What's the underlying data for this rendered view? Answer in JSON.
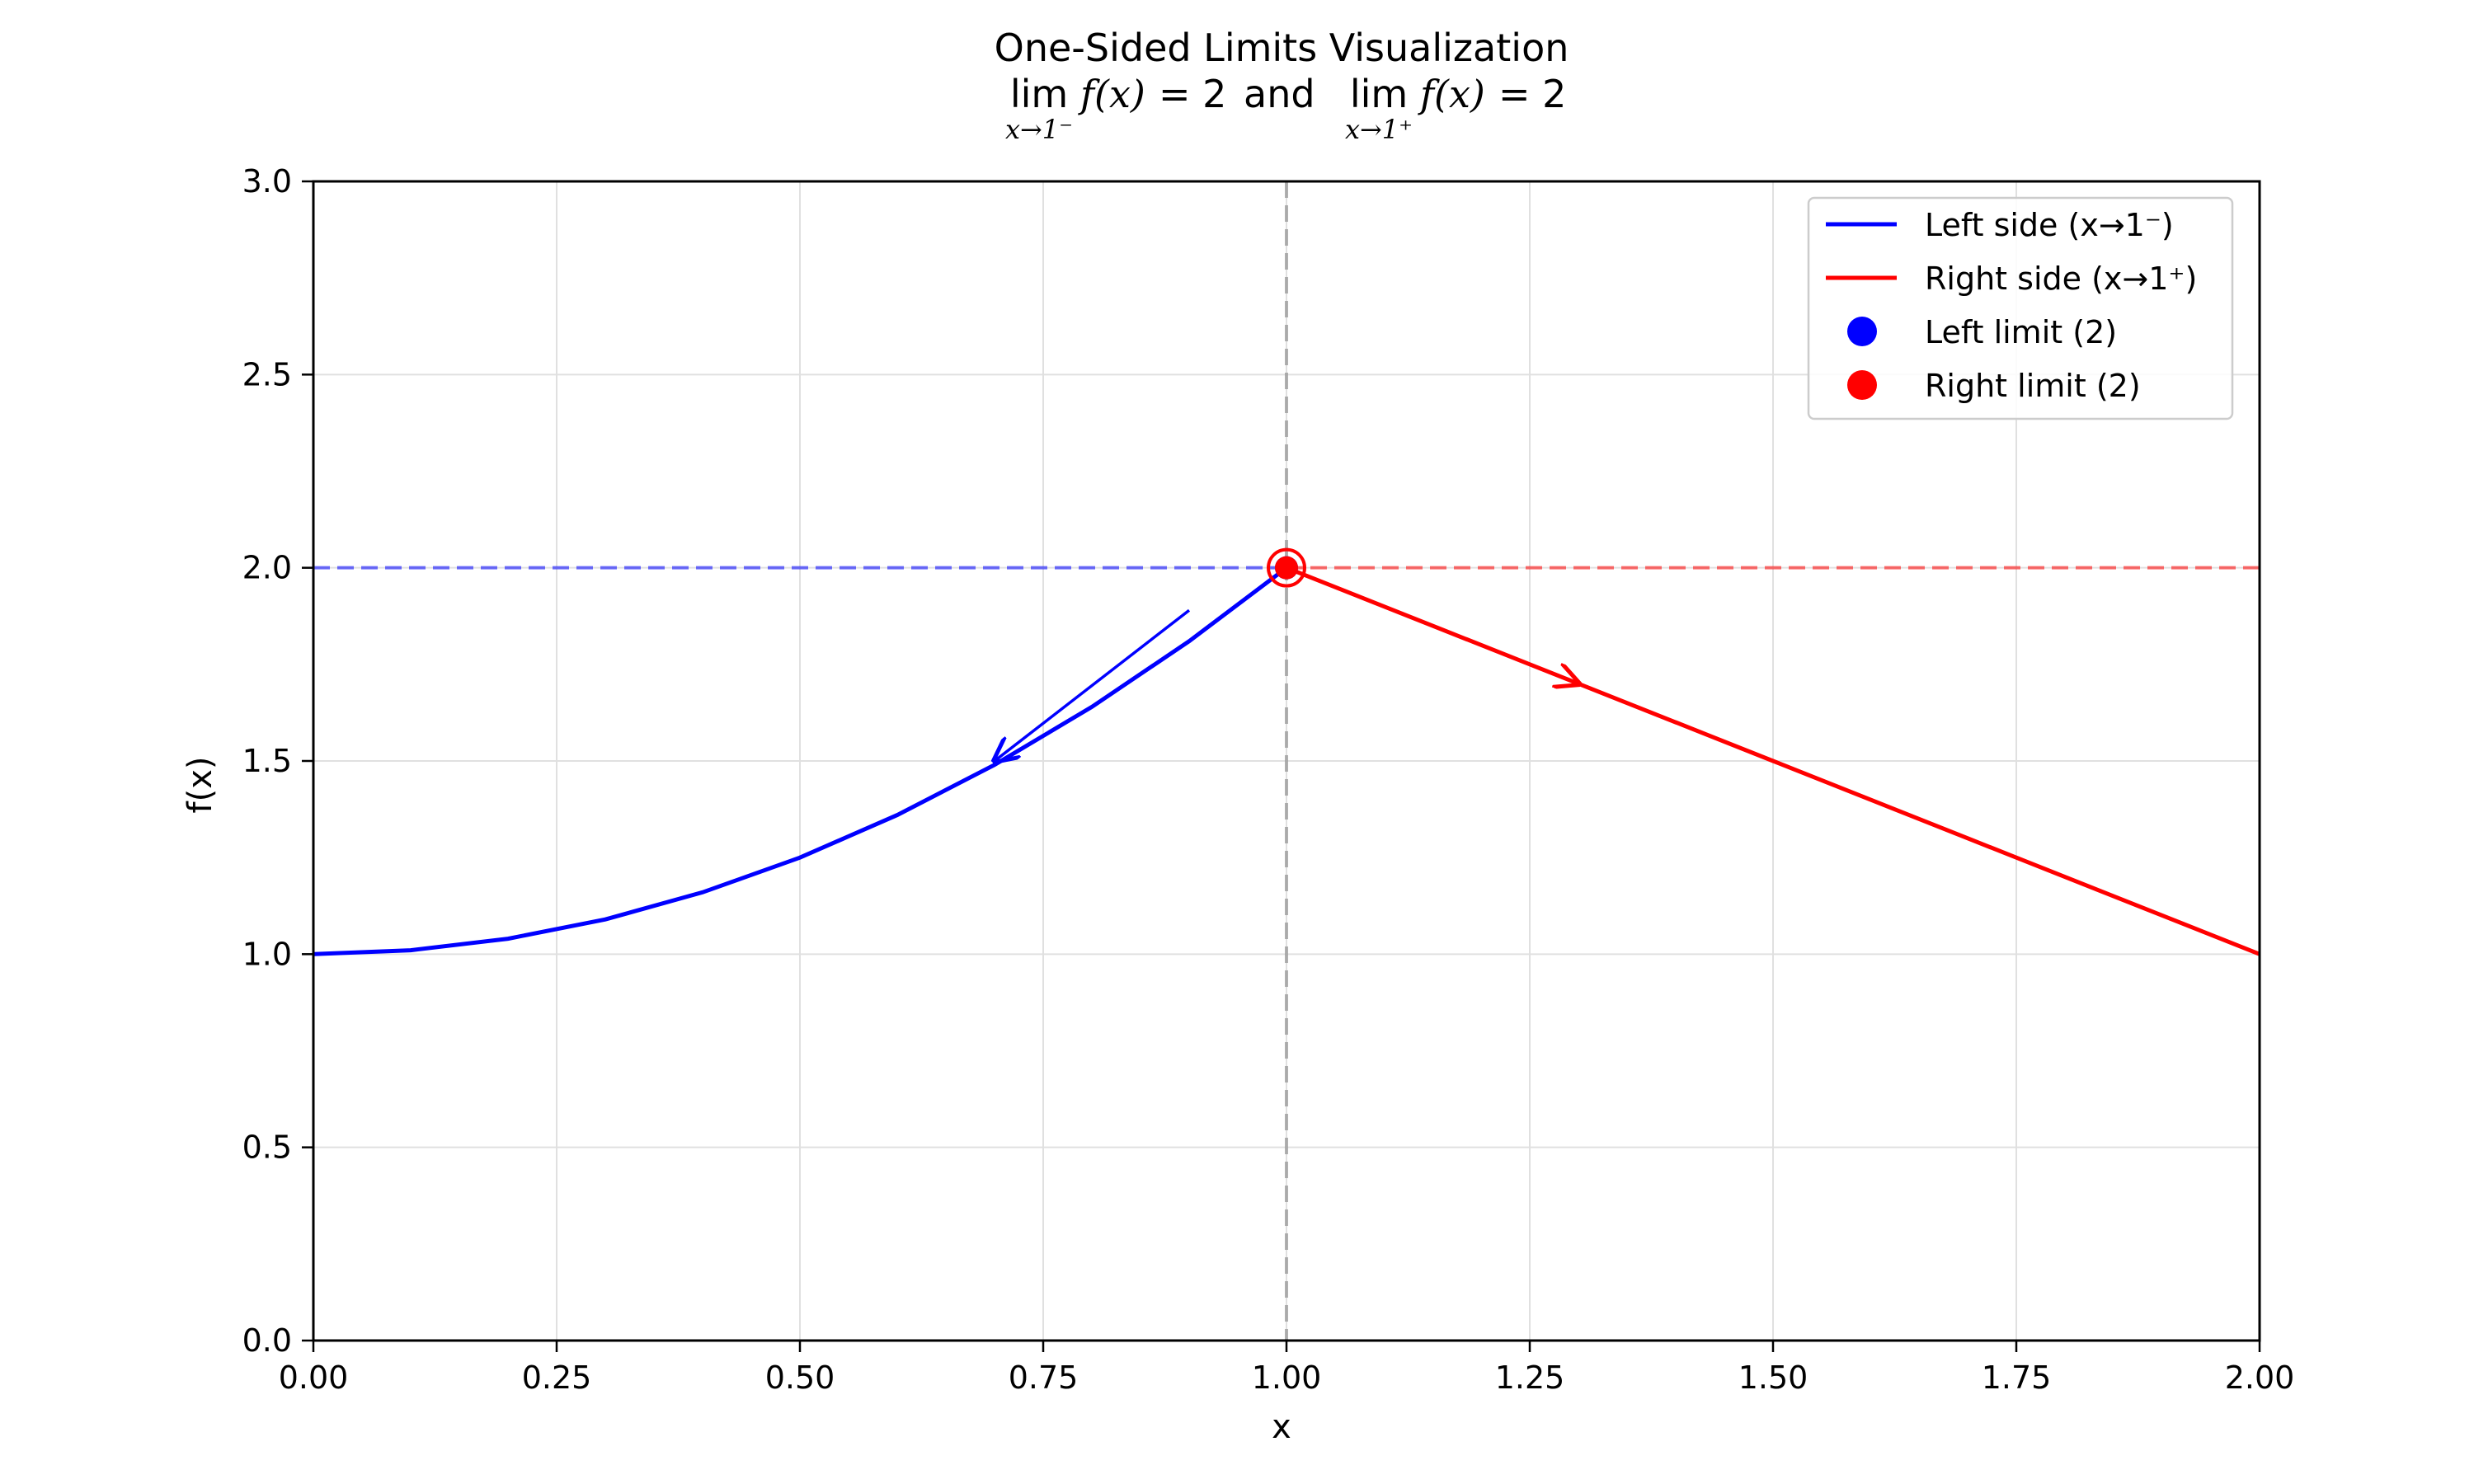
{
  "chart_data": {
    "type": "line",
    "title": "One-Sided Limits Visualization",
    "subtitle": {
      "lim": "lim",
      "left_sub": "x→1⁻",
      "right_sub": "x→1⁺",
      "fx": "f(x)",
      "eq": "= 2",
      "and": "and"
    },
    "xlabel": "x",
    "ylabel": "f(x)",
    "xlim": [
      0.0,
      2.0
    ],
    "ylim": [
      0.0,
      3.0
    ],
    "x_ticks": [
      "0.00",
      "0.25",
      "0.50",
      "0.75",
      "1.00",
      "1.25",
      "1.50",
      "1.75",
      "2.00"
    ],
    "y_ticks": [
      "0.0",
      "0.5",
      "1.0",
      "1.5",
      "2.0",
      "2.5",
      "3.0"
    ],
    "grid": true,
    "legend_position": "top-right",
    "series": [
      {
        "name": "Left side (x→1⁻)",
        "color": "#0000ff",
        "x": [
          0.0,
          0.1,
          0.2,
          0.3,
          0.4,
          0.5,
          0.6,
          0.7,
          0.8,
          0.9,
          1.0
        ],
        "y": [
          1.0,
          1.01,
          1.04,
          1.09,
          1.16,
          1.25,
          1.36,
          1.49,
          1.64,
          1.81,
          2.0
        ]
      },
      {
        "name": "Right side (x→1⁺)",
        "color": "#ff0000",
        "x": [
          1.0,
          1.25,
          1.5,
          1.75,
          2.0
        ],
        "y": [
          2.0,
          1.75,
          1.5,
          1.25,
          1.0
        ]
      }
    ],
    "limit_points": [
      {
        "name": "Left limit (2)",
        "color": "#0000ff",
        "x": 1.0,
        "y": 2.0
      },
      {
        "name": "Right limit (2)",
        "color": "#ff0000",
        "x": 1.0,
        "y": 2.0
      }
    ],
    "reference_lines": {
      "horizontal_y": 2.0,
      "vertical_x": 1.0,
      "left_color": "#0000ff",
      "right_color": "#ff0000",
      "vertical_color": "#999999"
    },
    "annotations": [
      {
        "type": "arrow",
        "color": "#0000ff",
        "from": [
          0.9,
          1.89
        ],
        "to": [
          0.7,
          1.5
        ]
      },
      {
        "type": "arrow",
        "color": "#ff0000",
        "from": [
          1.22,
          1.78
        ],
        "to": [
          1.3,
          1.7
        ]
      }
    ]
  }
}
